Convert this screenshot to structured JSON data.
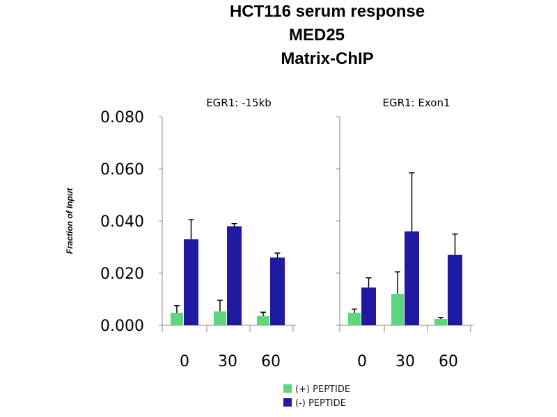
{
  "chart_data": {
    "type": "bar",
    "title_lines": [
      "HCT116 serum response",
      "MED25",
      "Matrix-ChIP"
    ],
    "ylabel": "Fraction of Input",
    "ylim": [
      0,
      0.08
    ],
    "yticks": [
      "0.000",
      "0.020",
      "0.040",
      "0.060",
      "0.080"
    ],
    "ytick_values": [
      0,
      0.02,
      0.04,
      0.06,
      0.08
    ],
    "categories": [
      "0",
      "30",
      "60"
    ],
    "legend": {
      "placement": "bottom-center"
    },
    "colors": {
      "plus": "#5cd67f",
      "minus": "#1f1aa0"
    },
    "panels": [
      {
        "title": "EGR1: -15kb",
        "series": [
          {
            "name": "(+) PEPTIDE",
            "values": [
              0.0048,
              0.0053,
              0.0035
            ],
            "errors": [
              0.0027,
              0.0043,
              0.0015
            ]
          },
          {
            "name": "(-) PEPTIDE",
            "values": [
              0.033,
              0.038,
              0.026
            ],
            "errors": [
              0.0075,
              0.001,
              0.0017
            ]
          }
        ]
      },
      {
        "title": "EGR1: Exon1",
        "series": [
          {
            "name": "(+) PEPTIDE",
            "values": [
              0.0048,
              0.012,
              0.0024
            ],
            "errors": [
              0.0014,
              0.0085,
              0.0006
            ]
          },
          {
            "name": "(-) PEPTIDE",
            "values": [
              0.0145,
              0.036,
              0.027
            ],
            "errors": [
              0.0037,
              0.0225,
              0.008
            ]
          }
        ]
      }
    ]
  }
}
